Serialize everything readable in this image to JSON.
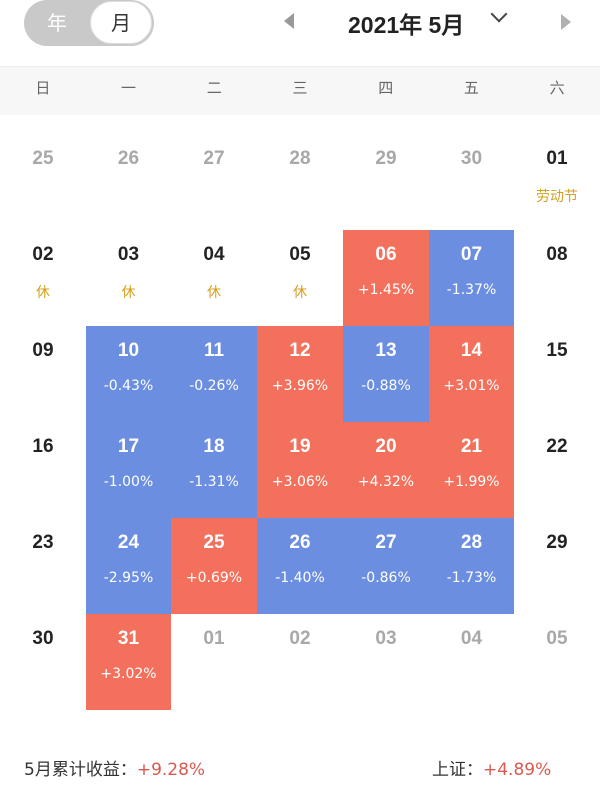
{
  "header": {
    "year_tab": "年",
    "month_tab": "月",
    "title": "2021年 5月"
  },
  "weekdays": [
    "日",
    "一",
    "二",
    "三",
    "四",
    "五",
    "六"
  ],
  "weeks": [
    [
      {
        "day": "25",
        "type": "other"
      },
      {
        "day": "26",
        "type": "other"
      },
      {
        "day": "27",
        "type": "other"
      },
      {
        "day": "28",
        "type": "other"
      },
      {
        "day": "29",
        "type": "other"
      },
      {
        "day": "30",
        "type": "other"
      },
      {
        "day": "01",
        "type": "normal",
        "label": "劳动节",
        "holiday": true
      }
    ],
    [
      {
        "day": "02",
        "type": "normal",
        "label": "休",
        "holiday": true
      },
      {
        "day": "03",
        "type": "normal",
        "label": "休",
        "holiday": true
      },
      {
        "day": "04",
        "type": "normal",
        "label": "休",
        "holiday": true
      },
      {
        "day": "05",
        "type": "normal",
        "label": "休",
        "holiday": true
      },
      {
        "day": "06",
        "type": "up",
        "label": "+1.45%"
      },
      {
        "day": "07",
        "type": "down",
        "label": "-1.37%"
      },
      {
        "day": "08",
        "type": "normal"
      }
    ],
    [
      {
        "day": "09",
        "type": "normal"
      },
      {
        "day": "10",
        "type": "down",
        "label": "-0.43%"
      },
      {
        "day": "11",
        "type": "down",
        "label": "-0.26%"
      },
      {
        "day": "12",
        "type": "up",
        "label": "+3.96%"
      },
      {
        "day": "13",
        "type": "down",
        "label": "-0.88%"
      },
      {
        "day": "14",
        "type": "up",
        "label": "+3.01%"
      },
      {
        "day": "15",
        "type": "normal"
      }
    ],
    [
      {
        "day": "16",
        "type": "normal"
      },
      {
        "day": "17",
        "type": "down",
        "label": "-1.00%"
      },
      {
        "day": "18",
        "type": "down",
        "label": "-1.31%"
      },
      {
        "day": "19",
        "type": "up",
        "label": "+3.06%"
      },
      {
        "day": "20",
        "type": "up",
        "label": "+4.32%"
      },
      {
        "day": "21",
        "type": "up",
        "label": "+1.99%"
      },
      {
        "day": "22",
        "type": "normal"
      }
    ],
    [
      {
        "day": "23",
        "type": "normal"
      },
      {
        "day": "24",
        "type": "down",
        "label": "-2.95%"
      },
      {
        "day": "25",
        "type": "up",
        "label": "+0.69%"
      },
      {
        "day": "26",
        "type": "down",
        "label": "-1.40%"
      },
      {
        "day": "27",
        "type": "down",
        "label": "-0.86%"
      },
      {
        "day": "28",
        "type": "down",
        "label": "-1.73%"
      },
      {
        "day": "29",
        "type": "normal"
      }
    ],
    [
      {
        "day": "30",
        "type": "normal"
      },
      {
        "day": "31",
        "type": "up",
        "label": "+3.02%"
      },
      {
        "day": "01",
        "type": "other"
      },
      {
        "day": "02",
        "type": "other"
      },
      {
        "day": "03",
        "type": "other"
      },
      {
        "day": "04",
        "type": "other"
      },
      {
        "day": "05",
        "type": "other"
      }
    ]
  ],
  "footer": {
    "monthly_label": "5月累计收益：",
    "monthly_value": "+9.28%",
    "index_label": "上证：",
    "index_value": "+4.89%"
  },
  "colors": {
    "up": "#f3705c",
    "down": "#6b8ee0",
    "holiday": "#d4a020"
  }
}
